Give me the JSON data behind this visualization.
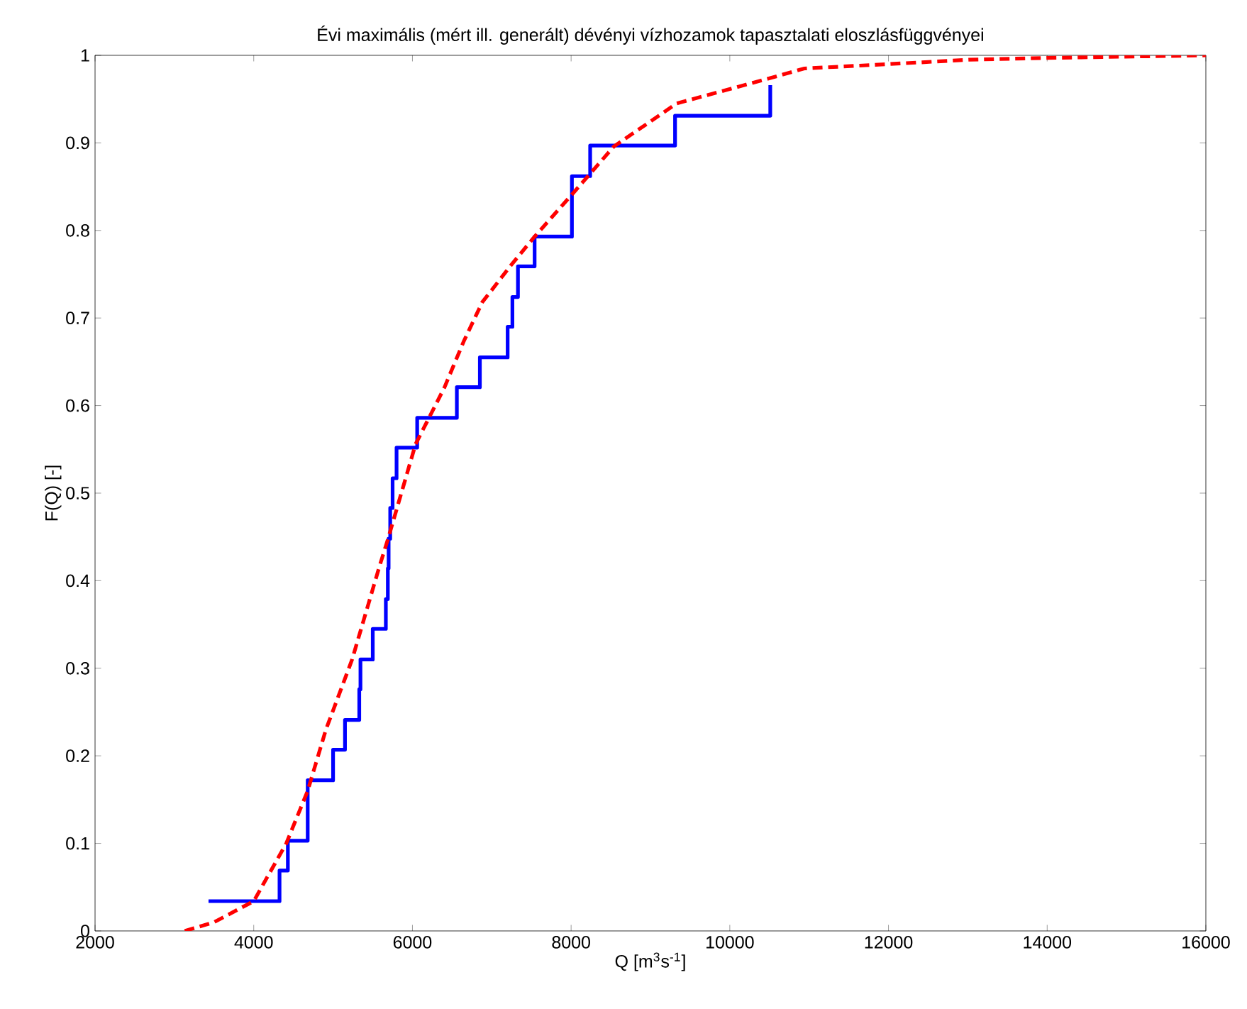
{
  "chart_data": {
    "type": "line",
    "title": "Évi maximális (mért ill. generált) dévényi vízhozamok tapasztalati eloszlásfüggvényei",
    "xlabel": "Q [m$^{3}$s$^{-1}$]",
    "ylabel": "F(Q) [-]",
    "xlim": [
      2000,
      16000
    ],
    "ylim": [
      0,
      1
    ],
    "xticks": [
      2000,
      4000,
      6000,
      8000,
      10000,
      12000,
      14000,
      16000
    ],
    "yticks": [
      0,
      0.1,
      0.2,
      0.3,
      0.4,
      0.5,
      0.6,
      0.7,
      0.8,
      0.9,
      1
    ],
    "series": [
      {
        "type": "step",
        "color": "#0000ff",
        "line_style": "solid",
        "x": [
          3430,
          4325,
          4430,
          4680,
          5000,
          5150,
          5330,
          5345,
          5500,
          5665,
          5690,
          5700,
          5720,
          5750,
          5800,
          6060,
          6560,
          6850,
          7200,
          7260,
          7330,
          7540,
          8010,
          8240,
          9310,
          10510
        ],
        "values": [
          0.034,
          0.069,
          0.103,
          0.172,
          0.207,
          0.241,
          0.276,
          0.31,
          0.345,
          0.379,
          0.414,
          0.448,
          0.483,
          0.517,
          0.552,
          0.586,
          0.621,
          0.655,
          0.69,
          0.724,
          0.759,
          0.793,
          0.862,
          0.897,
          0.931,
          0.966
        ]
      },
      {
        "color": "#ff0000",
        "line_style": "dashed",
        "x": [
          3130,
          3500,
          4000,
          4410,
          4680,
          4910,
          5240,
          5580,
          5690,
          6040,
          6400,
          6650,
          6880,
          7240,
          7540,
          8010,
          8540,
          9330,
          10510,
          10940,
          12010,
          13010,
          14000,
          16000
        ],
        "values": [
          0,
          0.01,
          0.034,
          0.1,
          0.16,
          0.23,
          0.31,
          0.415,
          0.447,
          0.556,
          0.62,
          0.674,
          0.718,
          0.76,
          0.793,
          0.841,
          0.896,
          0.945,
          0.974,
          0.985,
          0.99,
          0.995,
          0.997,
          1
        ]
      }
    ]
  }
}
